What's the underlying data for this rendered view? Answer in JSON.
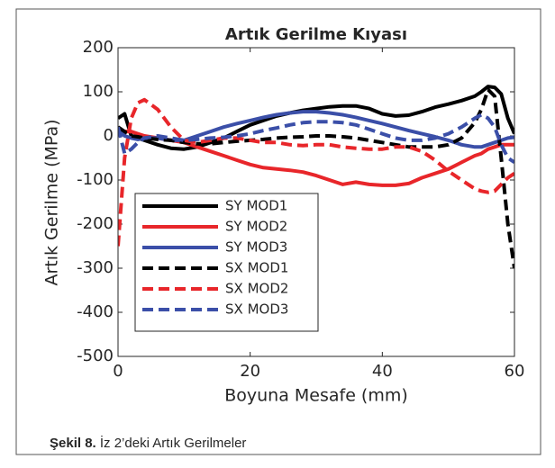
{
  "chart_data": {
    "type": "line",
    "title": "Artık Gerilme Kıyası",
    "xlabel": "Boyuna Mesafe (mm)",
    "ylabel": "Artık Gerilme (MPa)",
    "caption_label": "Şekil 8.",
    "caption": "İz 2’deki Artık Gerilmeler",
    "x": [
      0,
      1,
      2,
      3,
      4,
      6,
      8,
      10,
      12,
      14,
      16,
      18,
      20,
      22,
      24,
      26,
      28,
      30,
      32,
      34,
      36,
      38,
      40,
      42,
      44,
      46,
      48,
      50,
      52,
      54,
      55,
      56,
      57,
      58,
      59,
      60
    ],
    "xlim": [
      0,
      60
    ],
    "xticks": [
      0,
      20,
      40,
      60
    ],
    "ylim": [
      -500,
      200
    ],
    "yticks": [
      -500,
      -400,
      -300,
      -200,
      -100,
      0,
      100,
      200
    ],
    "legend": "lower left",
    "series": [
      {
        "name": "SY MOD1",
        "color": "#000000",
        "style": "solid",
        "values": [
          40,
          50,
          0,
          -5,
          -10,
          -20,
          -28,
          -30,
          -25,
          -15,
          -5,
          10,
          25,
          35,
          45,
          52,
          58,
          62,
          66,
          68,
          68,
          62,
          50,
          45,
          47,
          55,
          65,
          72,
          80,
          90,
          100,
          112,
          110,
          95,
          40,
          5
        ]
      },
      {
        "name": "SY MOD2",
        "color": "#e8262a",
        "style": "solid",
        "values": [
          5,
          10,
          10,
          5,
          0,
          -5,
          -10,
          -15,
          -25,
          -35,
          -45,
          -55,
          -65,
          -72,
          -75,
          -78,
          -82,
          -90,
          -100,
          -110,
          -105,
          -110,
          -112,
          -112,
          -108,
          -95,
          -85,
          -75,
          -60,
          -45,
          -40,
          -30,
          -25,
          -20,
          -20,
          -20
        ]
      },
      {
        "name": "SY MOD3",
        "color": "#3b4fa8",
        "style": "solid",
        "values": [
          15,
          0,
          -5,
          -8,
          -5,
          -5,
          -10,
          -10,
          0,
          10,
          20,
          28,
          35,
          42,
          48,
          52,
          55,
          55,
          52,
          48,
          42,
          35,
          28,
          20,
          12,
          5,
          -2,
          -10,
          -20,
          -25,
          -25,
          -20,
          -15,
          -10,
          -5,
          -3
        ]
      },
      {
        "name": "SX MOD1",
        "color": "#000000",
        "style": "dashed",
        "values": [
          20,
          10,
          0,
          -2,
          -5,
          -8,
          -10,
          -15,
          -18,
          -18,
          -15,
          -12,
          -10,
          -8,
          -5,
          -3,
          -2,
          0,
          0,
          -2,
          -5,
          -10,
          -15,
          -20,
          -25,
          -25,
          -25,
          -20,
          -5,
          30,
          60,
          105,
          90,
          -50,
          -200,
          -300
        ]
      },
      {
        "name": "SX MOD2",
        "color": "#e8262a",
        "style": "dashed",
        "values": [
          -250,
          -50,
          40,
          75,
          82,
          60,
          20,
          -10,
          -15,
          -10,
          -5,
          -5,
          -10,
          -15,
          -15,
          -20,
          -22,
          -20,
          -20,
          -25,
          -28,
          -30,
          -30,
          -25,
          -25,
          -35,
          -55,
          -80,
          -100,
          -120,
          -125,
          -128,
          -125,
          -110,
          -95,
          -85
        ]
      },
      {
        "name": "SX MOD3",
        "color": "#3b4fa8",
        "style": "dashed",
        "values": [
          20,
          -40,
          -30,
          -15,
          -5,
          0,
          -5,
          -10,
          -8,
          -5,
          -3,
          0,
          5,
          12,
          18,
          25,
          30,
          32,
          32,
          30,
          25,
          15,
          5,
          -5,
          -10,
          -10,
          -5,
          5,
          20,
          40,
          48,
          40,
          20,
          -20,
          -50,
          -60
        ]
      }
    ]
  }
}
